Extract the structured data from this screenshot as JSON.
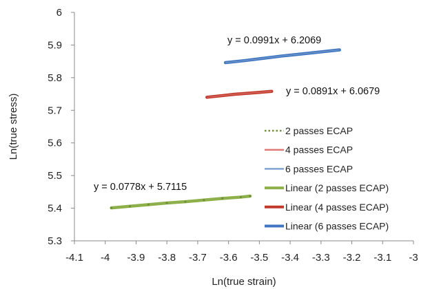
{
  "chart_data": {
    "type": "scatter",
    "xlabel": "Ln(true strain)",
    "ylabel": "Ln(true stress)",
    "xlim": [
      -4.1,
      -3.0
    ],
    "ylim": [
      5.3,
      6.0
    ],
    "x_ticks": [
      "-4.1",
      "-4",
      "-3.9",
      "-3.8",
      "-3.7",
      "-3.6",
      "-3.5",
      "-3.4",
      "-3.3",
      "-3.2",
      "-3.1",
      "-3"
    ],
    "y_ticks": [
      "5.3",
      "5.4",
      "5.5",
      "5.6",
      "5.7",
      "5.8",
      "5.9",
      "6"
    ],
    "grid": false,
    "legend_position": "right",
    "series": [
      {
        "name": "2 passes ECAP",
        "marker": "dotted",
        "color": "#8FAE5A",
        "x": [
          -3.98,
          -3.92,
          -3.86,
          -3.8,
          -3.74,
          -3.68,
          -3.62,
          -3.56,
          -3.53
        ],
        "y": [
          5.401,
          5.406,
          5.411,
          5.416,
          5.42,
          5.425,
          5.43,
          5.434,
          5.437
        ]
      },
      {
        "name": "4 passes ECAP",
        "marker": "line",
        "color": "#E07A76",
        "x": [
          -3.67,
          -3.62,
          -3.58,
          -3.54,
          -3.5,
          -3.46
        ],
        "y": [
          5.74,
          5.745,
          5.749,
          5.752,
          5.755,
          5.758
        ]
      },
      {
        "name": "6 passes ECAP",
        "marker": "line",
        "color": "#7FA3CF",
        "x": [
          -3.61,
          -3.55,
          -3.49,
          -3.43,
          -3.37,
          -3.31,
          -3.24
        ],
        "y": [
          5.846,
          5.852,
          5.859,
          5.866,
          5.872,
          5.878,
          5.885
        ]
      },
      {
        "name": "Linear (2 passes ECAP)",
        "marker": "trend",
        "color": "#8DB04A",
        "for": 0
      },
      {
        "name": "Linear (4 passes ECAP)",
        "marker": "trend",
        "color": "#C0392B",
        "for": 1
      },
      {
        "name": "Linear (6 passes ECAP)",
        "marker": "trend",
        "color": "#3F74C0",
        "for": 2
      }
    ],
    "equations": [
      {
        "text": "y = 0.0991x + 6.2069"
      },
      {
        "text": "y = 0.0891x + 6.0679"
      },
      {
        "text": "y = 0.0778x + 5.7115"
      }
    ]
  }
}
